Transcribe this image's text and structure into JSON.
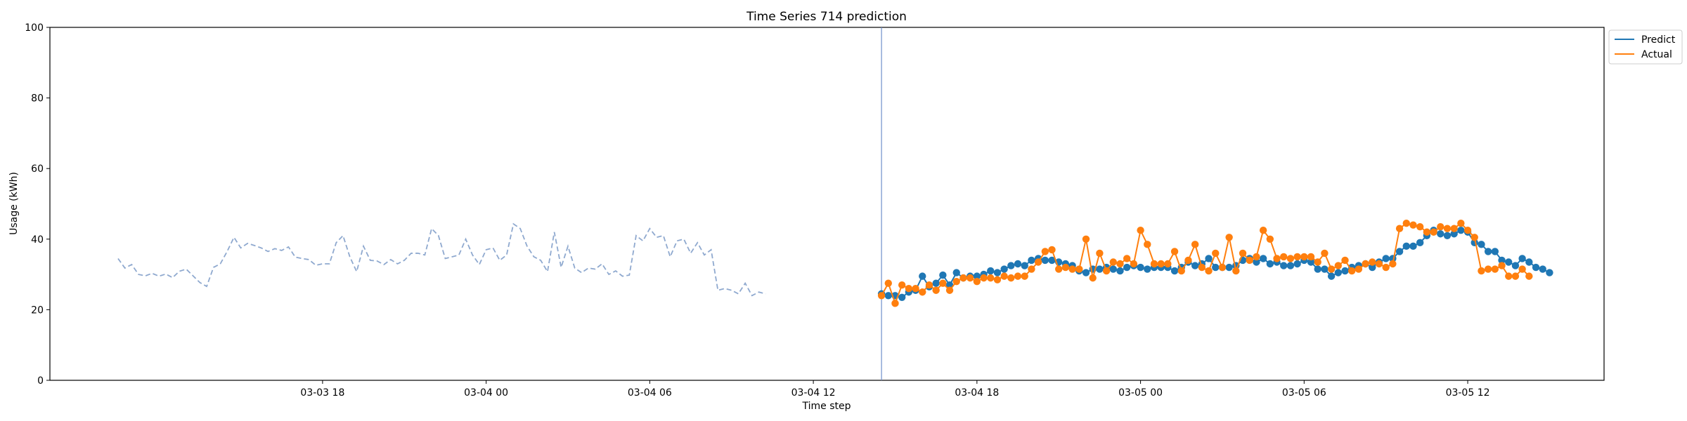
{
  "chart_data": {
    "type": "line",
    "title": "Time Series 714 prediction",
    "xlabel": "Time step",
    "ylabel": "Usage (kWh)",
    "ylim": [
      0,
      100
    ],
    "yticks": [
      0,
      20,
      40,
      60,
      80,
      100
    ],
    "xlim": [
      "2024-03-03 08:00",
      "2024-03-05 17:00"
    ],
    "xticks": [
      {
        "at": "2024-03-03 18:00",
        "label": "03-03 18"
      },
      {
        "at": "2024-03-04 00:00",
        "label": "03-04 00"
      },
      {
        "at": "2024-03-04 06:00",
        "label": "03-04 06"
      },
      {
        "at": "2024-03-04 12:00",
        "label": "03-04 12"
      },
      {
        "at": "2024-03-04 18:00",
        "label": "03-04 18"
      },
      {
        "at": "2024-03-05 00:00",
        "label": "03-05 00"
      },
      {
        "at": "2024-03-05 06:00",
        "label": "03-05 06"
      },
      {
        "at": "2024-03-05 12:00",
        "label": "03-05 12"
      }
    ],
    "grid": false,
    "legend_position": "outside top-right",
    "forecast_start": "2024-03-04 14:30",
    "history": {
      "start": "2024-03-03 10:30",
      "step_minutes": 15,
      "color": "#8fa9cf",
      "style": "dashed",
      "values": [
        34.5,
        31.8,
        32.8,
        30.0,
        29.6,
        30.3,
        29.5,
        30.1,
        29.1,
        30.9,
        31.5,
        29.6,
        27.7,
        26.6,
        32.0,
        33.0,
        36.5,
        40.5,
        37.5,
        38.8,
        38.2,
        37.5,
        36.5,
        37.3,
        36.8,
        37.8,
        34.9,
        34.5,
        34.2,
        32.6,
        33.0,
        33.0,
        39.0,
        41.0,
        35.0,
        30.8,
        38.0,
        34.0,
        33.8,
        32.8,
        34.2,
        33.0,
        34.0,
        36.0,
        36.0,
        35.5,
        43.0,
        41.0,
        34.5,
        35.0,
        35.5,
        40.0,
        35.5,
        32.8,
        37.0,
        37.5,
        34.0,
        35.5,
        44.3,
        43.0,
        38.0,
        35.0,
        34.0,
        30.8,
        42.0,
        32.0,
        38.0,
        31.8,
        30.5,
        31.8,
        31.5,
        33.0,
        30.0,
        31.0,
        29.5,
        29.8,
        41.0,
        39.5,
        43.0,
        40.5,
        41.0,
        35.0,
        39.5,
        40.0,
        36.0,
        39.0,
        35.5,
        37.0,
        25.5,
        26.0,
        25.5,
        24.5,
        27.5,
        24.0,
        25.0,
        24.5
      ]
    },
    "series": [
      {
        "name": "Predict",
        "color": "#1f77b4",
        "start": "2024-03-04 14:30",
        "step_minutes": 15,
        "values": [
          24.5,
          24.0,
          24.0,
          23.5,
          25.0,
          25.5,
          29.5,
          26.5,
          27.5,
          29.8,
          27.0,
          30.5,
          29.0,
          29.5,
          29.5,
          30.0,
          31.0,
          30.5,
          31.5,
          32.5,
          33.0,
          32.5,
          34.0,
          34.5,
          34.0,
          34.0,
          33.5,
          33.0,
          32.5,
          31.0,
          30.5,
          31.5,
          31.5,
          32.0,
          31.5,
          31.0,
          32.0,
          32.5,
          32.0,
          31.5,
          32.0,
          32.0,
          32.0,
          31.0,
          32.0,
          33.5,
          32.5,
          33.0,
          34.5,
          32.0,
          32.0,
          32.0,
          32.5,
          34.0,
          34.5,
          33.5,
          34.5,
          33.0,
          33.5,
          32.5,
          32.5,
          33.0,
          34.0,
          33.5,
          31.5,
          31.5,
          29.5,
          30.5,
          31.0,
          32.0,
          32.5,
          33.0,
          32.0,
          33.5,
          34.5,
          34.5,
          36.5,
          38.0,
          38.0,
          39.0,
          41.0,
          42.5,
          41.5,
          41.0,
          41.5,
          42.5,
          42.0,
          39.0,
          38.5,
          36.5,
          36.5,
          34.0,
          33.5,
          32.5,
          34.5,
          33.5,
          32.0,
          31.5,
          30.5
        ]
      },
      {
        "name": "Actual",
        "color": "#ff7f0e",
        "start": "2024-03-04 14:30",
        "step_minutes": 15,
        "values": [
          24.0,
          27.5,
          21.8,
          27.0,
          26.0,
          26.0,
          25.0,
          27.0,
          25.5,
          27.5,
          25.5,
          28.0,
          29.0,
          29.0,
          28.0,
          29.0,
          29.0,
          28.5,
          29.5,
          29.0,
          29.5,
          29.5,
          31.5,
          33.5,
          36.5,
          37.0,
          31.5,
          32.0,
          31.5,
          31.5,
          40.0,
          29.0,
          36.0,
          31.0,
          33.5,
          33.0,
          34.5,
          33.0,
          42.5,
          38.5,
          33.0,
          33.0,
          33.0,
          36.5,
          31.0,
          34.0,
          38.5,
          32.0,
          31.0,
          36.0,
          32.0,
          40.5,
          31.0,
          36.0,
          34.0,
          35.0,
          42.5,
          40.0,
          34.5,
          35.0,
          34.5,
          35.0,
          35.0,
          35.0,
          33.5,
          36.0,
          31.5,
          32.5,
          34.0,
          31.0,
          31.5,
          33.0,
          33.5,
          33.0,
          32.0,
          33.0,
          43.0,
          44.5,
          44.0,
          43.5,
          42.0,
          42.0,
          43.5,
          43.0,
          43.0,
          44.5,
          42.5,
          40.5,
          31.0,
          31.5,
          31.5,
          32.5,
          29.5,
          29.5,
          31.5,
          29.5
        ]
      }
    ]
  }
}
